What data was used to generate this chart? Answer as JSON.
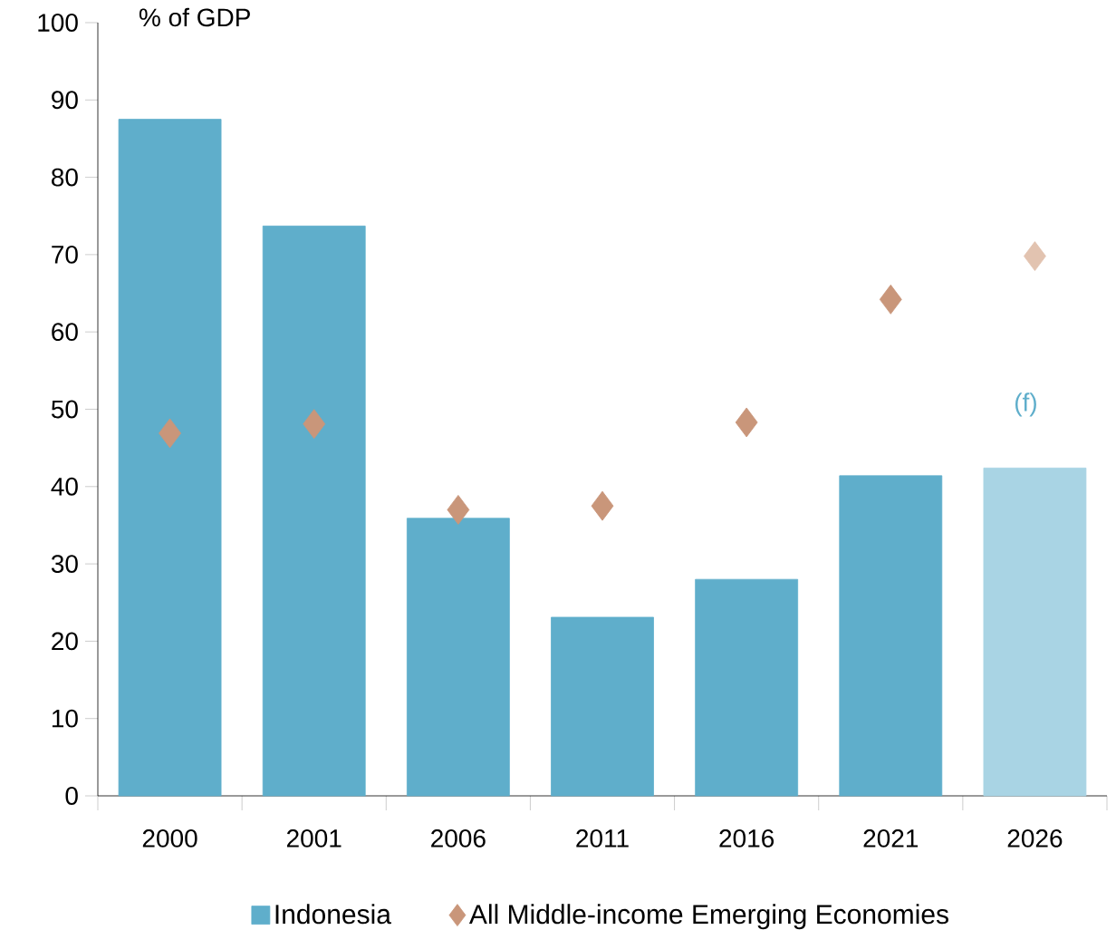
{
  "chart_data": {
    "type": "bar",
    "ylabel": "% of GDP",
    "categories": [
      "2000",
      "2001",
      "2006",
      "2011",
      "2016",
      "2021",
      "2026"
    ],
    "series": [
      {
        "name": "Indonesia",
        "color": "#5faecb",
        "colors": [
          "#5faecb",
          "#5faecb",
          "#5faecb",
          "#5faecb",
          "#5faecb",
          "#5faecb",
          "#a9d4e4"
        ],
        "values": [
          87.5,
          73.7,
          35.9,
          23.1,
          28.0,
          41.4,
          42.4
        ]
      },
      {
        "name": "All Middle-income Emerging Economies",
        "type": "scatter",
        "color": "#c9967a",
        "colors": [
          "#c9967a",
          "#c9967a",
          "#c9967a",
          "#c9967a",
          "#c9967a",
          "#c9967a",
          "#e2c3b0"
        ],
        "values": [
          46.9,
          48.1,
          37.0,
          37.5,
          48.3,
          64.2,
          69.8
        ]
      }
    ],
    "ylim": [
      0,
      100
    ],
    "yticks": [
      0,
      10,
      20,
      30,
      40,
      50,
      60,
      70,
      80,
      90,
      100
    ],
    "marker": "diamond",
    "legend": "bottom",
    "annotations": [
      "(f)"
    ]
  }
}
